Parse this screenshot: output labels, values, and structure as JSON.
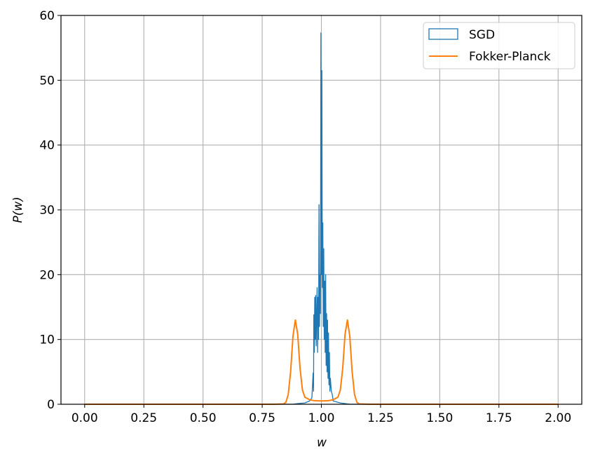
{
  "chart_data": {
    "type": "line",
    "title": "",
    "xlabel": "w",
    "ylabel": "P(w)",
    "xlim": [
      -0.1,
      2.1
    ],
    "ylim": [
      0,
      60
    ],
    "grid": true,
    "legend_placement": "top-right",
    "x_ticks": [
      "0.00",
      "0.25",
      "0.50",
      "0.75",
      "1.00",
      "1.25",
      "1.50",
      "1.75",
      "2.00"
    ],
    "y_ticks": [
      "0",
      "10",
      "20",
      "30",
      "40",
      "50",
      "60"
    ],
    "series": [
      {
        "name": "SGD",
        "kind": "step-histogram",
        "color": "#1f77b4",
        "points": [
          [
            0.0,
            0.0
          ],
          [
            0.88,
            0.0
          ],
          [
            0.9,
            0.1
          ],
          [
            0.93,
            0.2
          ],
          [
            0.95,
            0.5
          ],
          [
            0.96,
            1.0
          ],
          [
            0.965,
            4.8
          ],
          [
            0.967,
            2.0
          ],
          [
            0.968,
            13.8
          ],
          [
            0.97,
            8.0
          ],
          [
            0.972,
            16.5
          ],
          [
            0.974,
            10.0
          ],
          [
            0.976,
            16.8
          ],
          [
            0.978,
            9.0
          ],
          [
            0.98,
            14.0
          ],
          [
            0.982,
            18.0
          ],
          [
            0.984,
            8.0
          ],
          [
            0.986,
            16.5
          ],
          [
            0.988,
            10.0
          ],
          [
            0.99,
            30.8
          ],
          [
            0.992,
            12.0
          ],
          [
            0.994,
            20.0
          ],
          [
            0.996,
            14.0
          ],
          [
            0.998,
            57.3
          ],
          [
            1.0,
            20.0
          ],
          [
            1.002,
            51.5
          ],
          [
            1.004,
            18.0
          ],
          [
            1.006,
            28.0
          ],
          [
            1.008,
            12.0
          ],
          [
            1.01,
            24.0
          ],
          [
            1.012,
            10.0
          ],
          [
            1.014,
            19.0
          ],
          [
            1.016,
            8.0
          ],
          [
            1.018,
            20.0
          ],
          [
            1.02,
            6.0
          ],
          [
            1.022,
            14.0
          ],
          [
            1.024,
            5.0
          ],
          [
            1.026,
            13.0
          ],
          [
            1.028,
            4.0
          ],
          [
            1.03,
            11.0
          ],
          [
            1.032,
            3.0
          ],
          [
            1.034,
            8.0
          ],
          [
            1.036,
            2.0
          ],
          [
            1.038,
            4.0
          ],
          [
            1.042,
            2.0
          ],
          [
            1.046,
            1.5
          ],
          [
            1.05,
            0.5
          ],
          [
            1.06,
            0.4
          ],
          [
            1.07,
            0.3
          ],
          [
            1.08,
            0.2
          ],
          [
            1.1,
            0.1
          ],
          [
            1.12,
            0.0
          ],
          [
            2.0,
            0.0
          ]
        ]
      },
      {
        "name": "Fokker-Planck",
        "kind": "line",
        "color": "#ff7f0e",
        "points": [
          [
            0.0,
            0.0
          ],
          [
            0.8,
            0.0
          ],
          [
            0.84,
            0.05
          ],
          [
            0.85,
            0.3
          ],
          [
            0.86,
            1.5
          ],
          [
            0.87,
            5.0
          ],
          [
            0.88,
            10.5
          ],
          [
            0.89,
            13.0
          ],
          [
            0.9,
            10.8
          ],
          [
            0.91,
            5.5
          ],
          [
            0.92,
            2.2
          ],
          [
            0.93,
            1.1
          ],
          [
            0.95,
            0.7
          ],
          [
            0.97,
            0.55
          ],
          [
            1.0,
            0.5
          ],
          [
            1.03,
            0.55
          ],
          [
            1.05,
            0.7
          ],
          [
            1.07,
            1.1
          ],
          [
            1.08,
            2.2
          ],
          [
            1.09,
            5.5
          ],
          [
            1.1,
            10.8
          ],
          [
            1.11,
            13.0
          ],
          [
            1.12,
            10.5
          ],
          [
            1.13,
            5.0
          ],
          [
            1.14,
            1.5
          ],
          [
            1.15,
            0.3
          ],
          [
            1.16,
            0.05
          ],
          [
            1.2,
            0.0
          ],
          [
            2.0,
            0.0
          ]
        ]
      }
    ]
  }
}
